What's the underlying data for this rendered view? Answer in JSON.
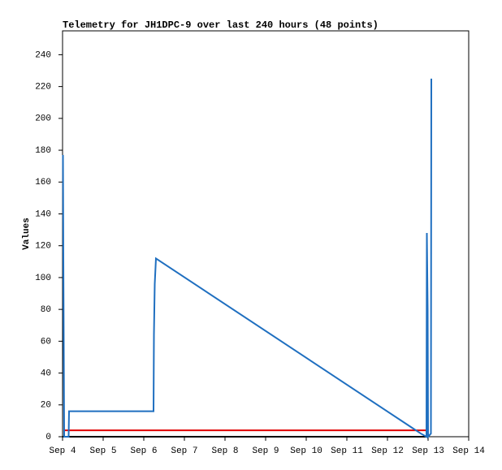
{
  "chart_data": {
    "type": "line",
    "title": "Telemetry for JH1DPC-9 over last 240 hours (48 points)",
    "y_label": "Values",
    "xlim": [
      4,
      14
    ],
    "xticks": [
      {
        "value": 4,
        "label": "Sep 4"
      },
      {
        "value": 5,
        "label": "Sep 5"
      },
      {
        "value": 6,
        "label": "Sep 6"
      },
      {
        "value": 7,
        "label": "Sep 7"
      },
      {
        "value": 8,
        "label": "Sep 8"
      },
      {
        "value": 9,
        "label": "Sep 9"
      },
      {
        "value": 10,
        "label": "Sep 10"
      },
      {
        "value": 11,
        "label": "Sep 11"
      },
      {
        "value": 12,
        "label": "Sep 12"
      },
      {
        "value": 13,
        "label": "Sep 13"
      },
      {
        "value": 14,
        "label": "Sep 14"
      }
    ],
    "ylim": [
      0,
      255
    ],
    "yticks": [
      0,
      20,
      40,
      60,
      80,
      100,
      120,
      140,
      160,
      180,
      200,
      220,
      240
    ],
    "series": [
      {
        "color": "#1f6fc0",
        "x": [
          4.01,
          4.02,
          4.04,
          4.15,
          4.16,
          6.24,
          6.25,
          6.27,
          6.3,
          12.82,
          12.96,
          12.97,
          12.99,
          13.0,
          13.07,
          13.08
        ],
        "values": [
          177,
          112,
          0,
          0,
          16,
          16,
          64,
          96,
          112,
          2,
          0,
          128,
          80,
          0,
          2,
          225
        ]
      },
      {
        "color": "#e00000",
        "x": [
          4.02,
          13.02
        ],
        "values": [
          4,
          4
        ]
      },
      {
        "color": "#000000",
        "x": [
          4.0,
          13.0
        ],
        "values": [
          0,
          0
        ]
      }
    ]
  }
}
